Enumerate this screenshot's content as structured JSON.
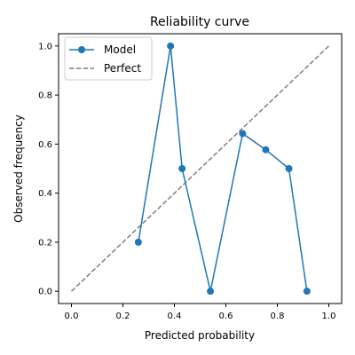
{
  "chart_data": {
    "type": "line",
    "title": "Reliability curve",
    "xlabel": "Predicted probability",
    "ylabel": "Observed frequency",
    "xlim": [
      -0.05,
      1.05
    ],
    "ylim": [
      -0.05,
      1.05
    ],
    "xticks": [
      0.0,
      0.2,
      0.4,
      0.6,
      0.8,
      1.0
    ],
    "yticks": [
      0.0,
      0.2,
      0.4,
      0.6,
      0.8,
      1.0
    ],
    "xtick_labels": [
      "0.0",
      "0.2",
      "0.4",
      "0.6",
      "0.8",
      "1.0"
    ],
    "ytick_labels": [
      "0.0",
      "0.2",
      "0.4",
      "0.6",
      "0.8",
      "1.0"
    ],
    "grid": false,
    "legend_position": "top-left",
    "series": [
      {
        "name": "Model",
        "style": "solid-line-with-circle-markers",
        "color": "#1f77b4",
        "x": [
          0.26,
          0.385,
          0.43,
          0.54,
          0.665,
          0.755,
          0.845,
          0.915
        ],
        "y": [
          0.2,
          1.0,
          0.5,
          0.0,
          0.643,
          0.577,
          0.5,
          0.0
        ]
      },
      {
        "name": "Perfect",
        "style": "dashed-line",
        "color": "#7f7f7f",
        "x": [
          0.0,
          1.0
        ],
        "y": [
          0.0,
          1.0
        ]
      }
    ]
  }
}
